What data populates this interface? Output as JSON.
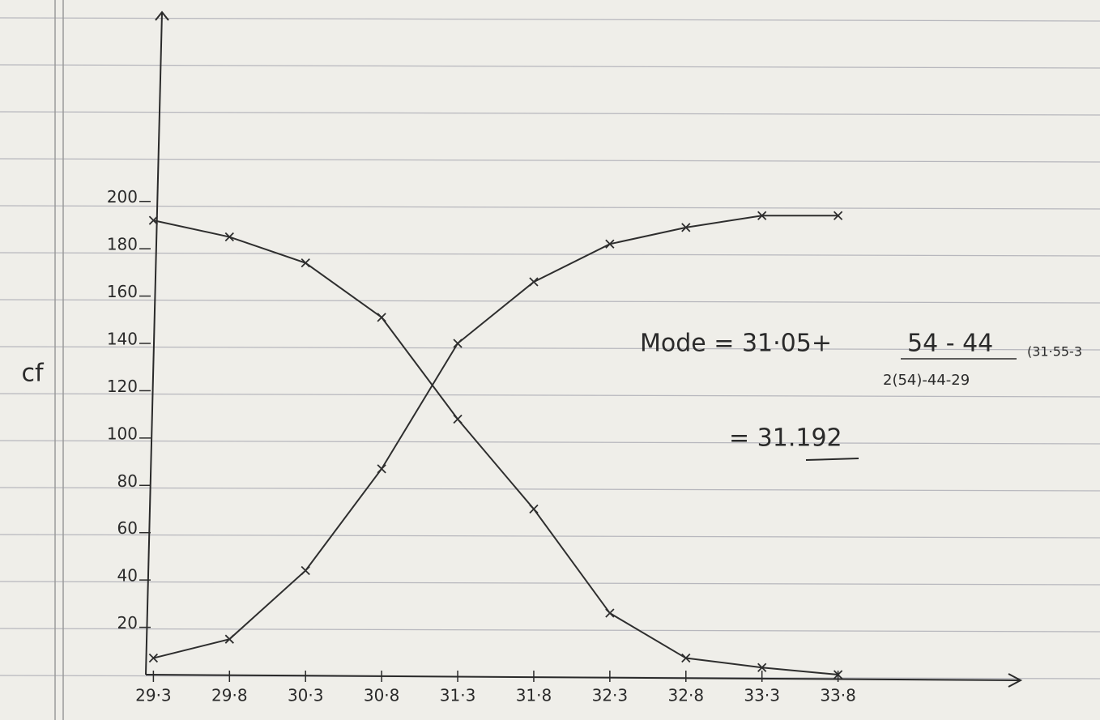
{
  "chart_data": {
    "type": "line",
    "y_label": "cf",
    "x": [
      29.3,
      29.8,
      30.3,
      30.8,
      31.3,
      31.8,
      32.3,
      32.8,
      33.3,
      33.8
    ],
    "series": [
      {
        "color": "#2e2e2e",
        "values": [
          7,
          15,
          44,
          87,
          140,
          166,
          182,
          189,
          194,
          194
        ]
      },
      {
        "color": "#2e2e2e",
        "values": [
          192,
          185,
          174,
          151,
          108,
          70,
          26,
          7,
          3,
          0
        ]
      }
    ],
    "xlim": [
      29.25,
      35.0
    ],
    "ylim": [
      0,
      280
    ],
    "xticks": [
      {
        "value": 29.3,
        "label": "29·3"
      },
      {
        "value": 29.8,
        "label": "29·8"
      },
      {
        "value": 30.3,
        "label": "30·3"
      },
      {
        "value": 30.8,
        "label": "30·8"
      },
      {
        "value": 31.3,
        "label": "31·3"
      },
      {
        "value": 31.8,
        "label": "31·8"
      },
      {
        "value": 32.3,
        "label": "32·3"
      },
      {
        "value": 32.8,
        "label": "32·8"
      },
      {
        "value": 33.3,
        "label": "33·3"
      },
      {
        "value": 33.8,
        "label": "33·8"
      }
    ],
    "yticks": [
      20,
      40,
      60,
      80,
      100,
      120,
      140,
      160,
      180,
      200
    ],
    "grid": false,
    "annotations": [
      "Mode = 31·05+",
      "54 - 44",
      "2(54)-44-29",
      "(31·55-3",
      "= 31.192"
    ]
  }
}
